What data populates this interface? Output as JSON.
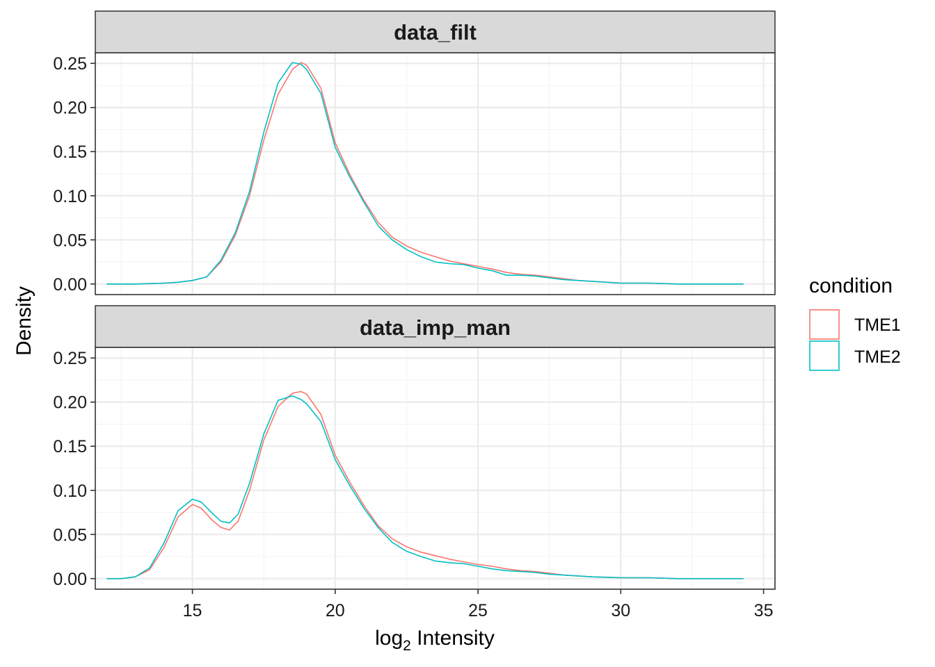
{
  "chart_data": {
    "type": "line",
    "xlabel": "log",
    "xlabel_sub": "2",
    "xlabel_rest": " Intensity",
    "ylabel": "Density",
    "xlim": [
      11.6,
      35.4
    ],
    "ylim": [
      -0.012,
      0.262
    ],
    "x_ticks": [
      15,
      20,
      25,
      30,
      35
    ],
    "x_tick_labels": [
      "15",
      "20",
      "25",
      "30",
      "35"
    ],
    "y_ticks": [
      0,
      0.05,
      0.1,
      0.15,
      0.2,
      0.25
    ],
    "y_tick_labels": [
      "0.00",
      "0.05",
      "0.10",
      "0.15",
      "0.20",
      "0.25"
    ],
    "grid": true,
    "legend": {
      "title": "condition",
      "placement": "right",
      "entries": [
        {
          "label": "TME1",
          "color": "#F8766D"
        },
        {
          "label": "TME2",
          "color": "#00BFC4"
        }
      ]
    },
    "panels": [
      {
        "title": "data_filt",
        "series": [
          {
            "name": "TME1",
            "color": "#F8766D",
            "x": [
              12.0,
              13.0,
              14.0,
              14.5,
              15.0,
              15.5,
              16.0,
              16.5,
              17.0,
              17.5,
              18.0,
              18.5,
              18.8,
              19.0,
              19.5,
              20.0,
              20.5,
              21.0,
              21.5,
              22.0,
              22.5,
              23.0,
              23.5,
              24.0,
              24.5,
              25.0,
              25.5,
              26.0,
              26.5,
              27.0,
              27.5,
              28.0,
              28.5,
              29.0,
              29.5,
              30.0,
              31.0,
              32.0,
              33.0,
              34.3
            ],
            "y": [
              0.0,
              0.0,
              0.001,
              0.002,
              0.004,
              0.008,
              0.025,
              0.055,
              0.1,
              0.163,
              0.215,
              0.243,
              0.251,
              0.248,
              0.222,
              0.16,
              0.125,
              0.095,
              0.07,
              0.053,
              0.043,
              0.036,
              0.031,
              0.026,
              0.023,
              0.02,
              0.017,
              0.013,
              0.011,
              0.01,
              0.008,
              0.006,
              0.004,
              0.003,
              0.002,
              0.001,
              0.001,
              0.0,
              0.0,
              0.0
            ]
          },
          {
            "name": "TME2",
            "color": "#00BFC4",
            "x": [
              12.0,
              13.0,
              14.0,
              14.5,
              15.0,
              15.5,
              16.0,
              16.5,
              17.0,
              17.5,
              18.0,
              18.5,
              18.8,
              19.0,
              19.5,
              20.0,
              20.5,
              21.0,
              21.5,
              22.0,
              22.5,
              23.0,
              23.5,
              24.0,
              24.5,
              25.0,
              25.5,
              26.0,
              26.5,
              27.0,
              27.5,
              28.0,
              28.5,
              29.0,
              29.5,
              30.0,
              31.0,
              32.0,
              33.0,
              34.3
            ],
            "y": [
              0.0,
              0.0,
              0.001,
              0.002,
              0.004,
              0.008,
              0.027,
              0.058,
              0.105,
              0.172,
              0.228,
              0.251,
              0.249,
              0.243,
              0.216,
              0.155,
              0.122,
              0.093,
              0.066,
              0.05,
              0.039,
              0.031,
              0.025,
              0.023,
              0.022,
              0.018,
              0.015,
              0.01,
              0.01,
              0.009,
              0.007,
              0.005,
              0.004,
              0.003,
              0.002,
              0.001,
              0.001,
              0.0,
              0.0,
              0.0
            ]
          }
        ]
      },
      {
        "title": "data_imp_man",
        "series": [
          {
            "name": "TME1",
            "color": "#F8766D",
            "x": [
              12.0,
              12.5,
              13.0,
              13.5,
              14.0,
              14.5,
              15.0,
              15.3,
              15.7,
              16.0,
              16.3,
              16.6,
              17.0,
              17.5,
              18.0,
              18.5,
              18.8,
              19.0,
              19.5,
              20.0,
              20.5,
              21.0,
              21.5,
              22.0,
              22.5,
              23.0,
              23.5,
              24.0,
              24.5,
              25.0,
              25.5,
              26.0,
              26.5,
              27.0,
              27.5,
              28.0,
              29.0,
              30.0,
              31.0,
              32.0,
              33.0,
              34.3
            ],
            "y": [
              0.0,
              0.0,
              0.002,
              0.01,
              0.035,
              0.07,
              0.084,
              0.08,
              0.066,
              0.058,
              0.055,
              0.065,
              0.1,
              0.157,
              0.195,
              0.21,
              0.212,
              0.209,
              0.186,
              0.14,
              0.11,
              0.083,
              0.06,
              0.045,
              0.036,
              0.03,
              0.026,
              0.022,
              0.019,
              0.016,
              0.014,
              0.011,
              0.009,
              0.008,
              0.006,
              0.004,
              0.002,
              0.001,
              0.001,
              0.0,
              0.0,
              0.0
            ]
          },
          {
            "name": "TME2",
            "color": "#00BFC4",
            "x": [
              12.0,
              12.5,
              13.0,
              13.5,
              14.0,
              14.5,
              15.0,
              15.3,
              15.7,
              16.0,
              16.3,
              16.6,
              17.0,
              17.5,
              18.0,
              18.5,
              18.8,
              19.0,
              19.5,
              20.0,
              20.5,
              21.0,
              21.5,
              22.0,
              22.5,
              23.0,
              23.5,
              24.0,
              24.5,
              25.0,
              25.5,
              26.0,
              26.5,
              27.0,
              27.5,
              28.0,
              29.0,
              30.0,
              31.0,
              32.0,
              33.0,
              34.3
            ],
            "y": [
              0.0,
              0.0,
              0.002,
              0.012,
              0.04,
              0.077,
              0.09,
              0.087,
              0.074,
              0.065,
              0.063,
              0.073,
              0.108,
              0.164,
              0.202,
              0.207,
              0.203,
              0.198,
              0.178,
              0.135,
              0.106,
              0.08,
              0.058,
              0.041,
              0.031,
              0.025,
              0.02,
              0.018,
              0.017,
              0.014,
              0.011,
              0.009,
              0.008,
              0.007,
              0.005,
              0.004,
              0.002,
              0.001,
              0.001,
              0.0,
              0.0,
              0.0
            ]
          }
        ]
      }
    ]
  }
}
